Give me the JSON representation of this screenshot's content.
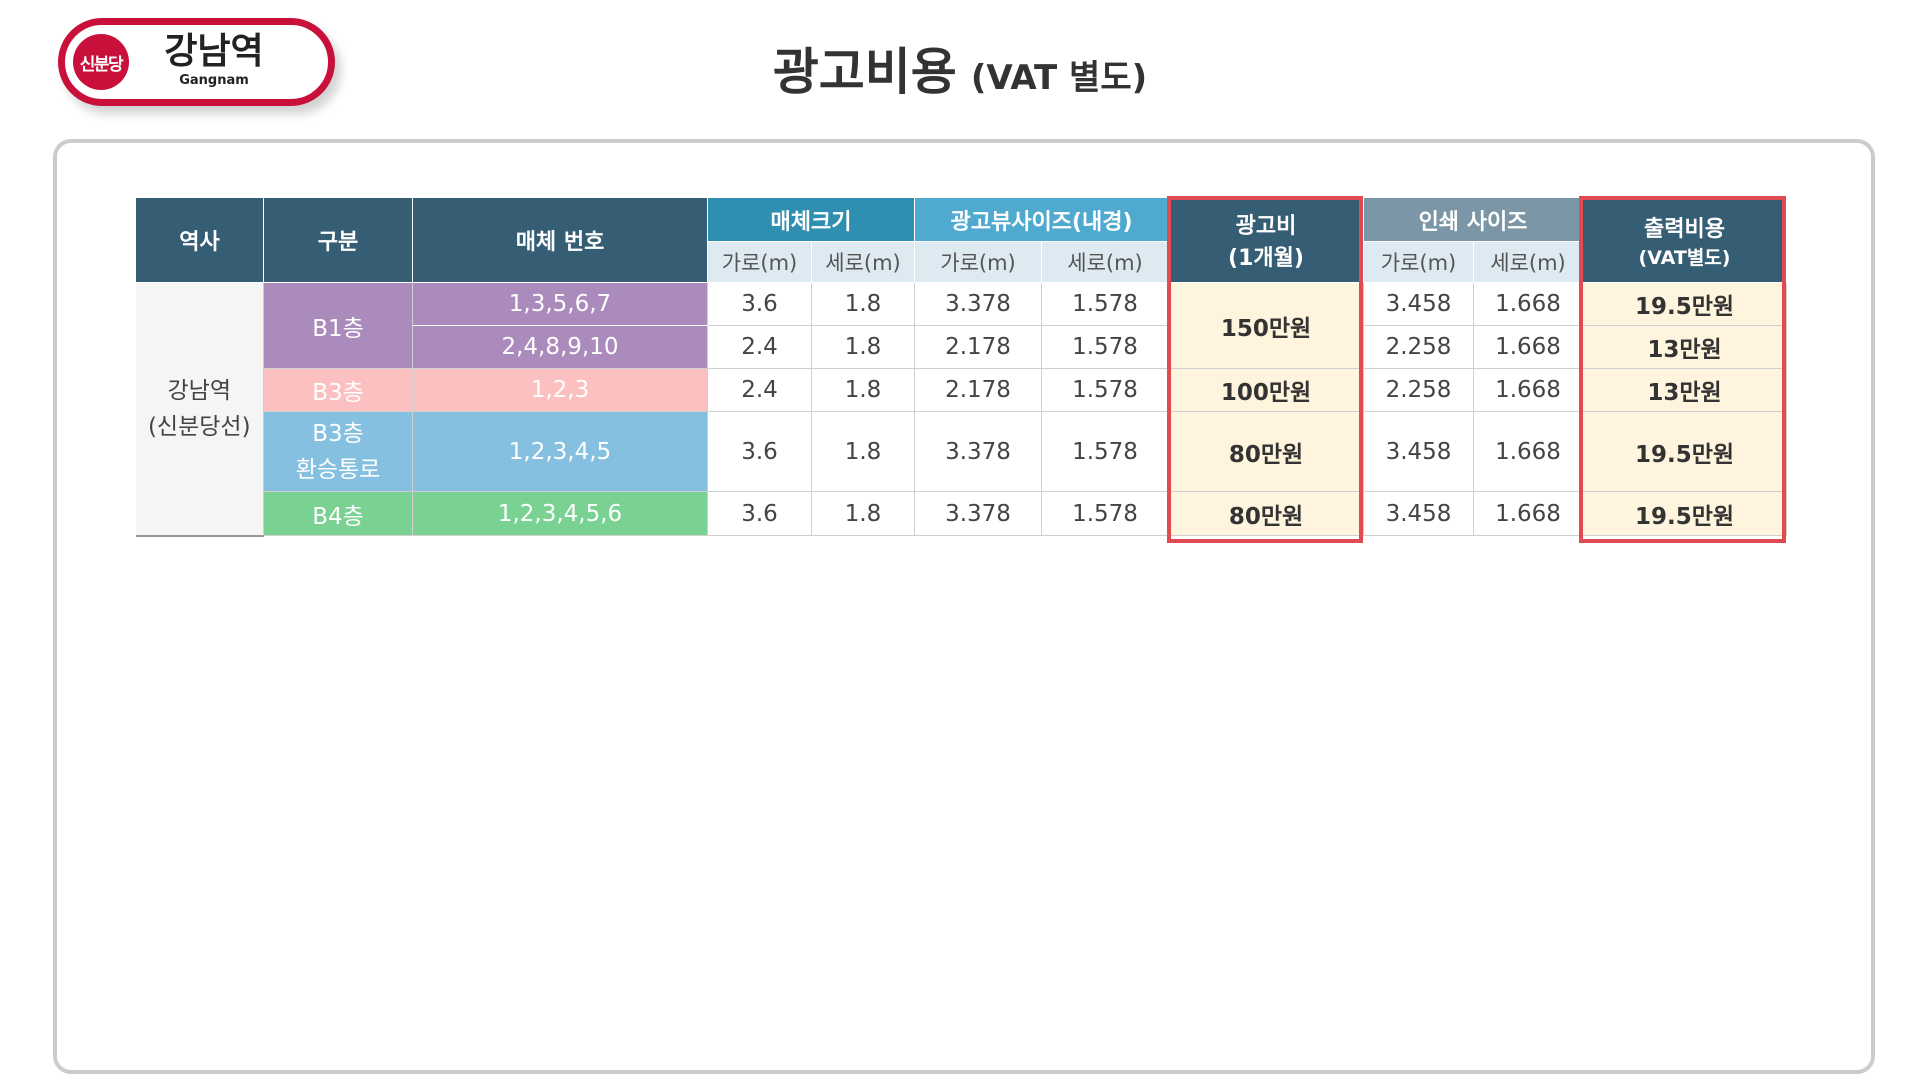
{
  "logo": {
    "line_badge": "신분당",
    "station_name": "강남역",
    "station_name_en": "Gangnam"
  },
  "title": {
    "main": "광고비용",
    "sub": "(VAT 별도)"
  },
  "colors": {
    "brand_red": "#c8103a",
    "header_dark": "#355d74",
    "highlight_red": "#e04b52",
    "b1_purple": "#ab8bbb",
    "b3_pink": "#fcc0c0",
    "b3_transfer_blue": "#86c0e0",
    "b4_green": "#79d291",
    "cost_fill": "#fff4dd"
  },
  "table": {
    "headers": {
      "station": "역사",
      "division": "구분",
      "media_no": "매체 번호",
      "media_size": "매체크기",
      "view_size": "광고뷰사이즈(내경)",
      "ad_cost_line1": "광고비",
      "ad_cost_line2": "(1개월)",
      "print_size": "인쇄 사이즈",
      "print_cost_line1": "출력비용",
      "print_cost_line2": "(VAT별도)",
      "width": "가로(m)",
      "height": "세로(m)"
    },
    "station": {
      "line1": "강남역",
      "line2": "(신분당선)"
    },
    "groups": {
      "b1": "B1층",
      "b3": "B3층",
      "b3_transfer_line1": "B3층",
      "b3_transfer_line2": "환승통로",
      "b4": "B4층"
    },
    "rows": [
      {
        "media_no": "1,3,5,6,7",
        "media_w": "3.6",
        "media_h": "1.8",
        "view_w": "3.378",
        "view_h": "1.578",
        "ad_cost": "150만원",
        "print_w": "3.458",
        "print_h": "1.668",
        "print_cost": "19.5만원"
      },
      {
        "media_no": "2,4,8,9,10",
        "media_w": "2.4",
        "media_h": "1.8",
        "view_w": "2.178",
        "view_h": "1.578",
        "print_w": "2.258",
        "print_h": "1.668",
        "print_cost": "13만원"
      },
      {
        "media_no": "1,2,3",
        "media_w": "2.4",
        "media_h": "1.8",
        "view_w": "2.178",
        "view_h": "1.578",
        "ad_cost": "100만원",
        "print_w": "2.258",
        "print_h": "1.668",
        "print_cost": "13만원"
      },
      {
        "media_no": "1,2,3,4,5",
        "media_w": "3.6",
        "media_h": "1.8",
        "view_w": "3.378",
        "view_h": "1.578",
        "ad_cost": "80만원",
        "print_w": "3.458",
        "print_h": "1.668",
        "print_cost": "19.5만원"
      },
      {
        "media_no": "1,2,3,4,5,6",
        "media_w": "3.6",
        "media_h": "1.8",
        "view_w": "3.378",
        "view_h": "1.578",
        "ad_cost": "80만원",
        "print_w": "3.458",
        "print_h": "1.668",
        "print_cost": "19.5만원"
      }
    ]
  }
}
